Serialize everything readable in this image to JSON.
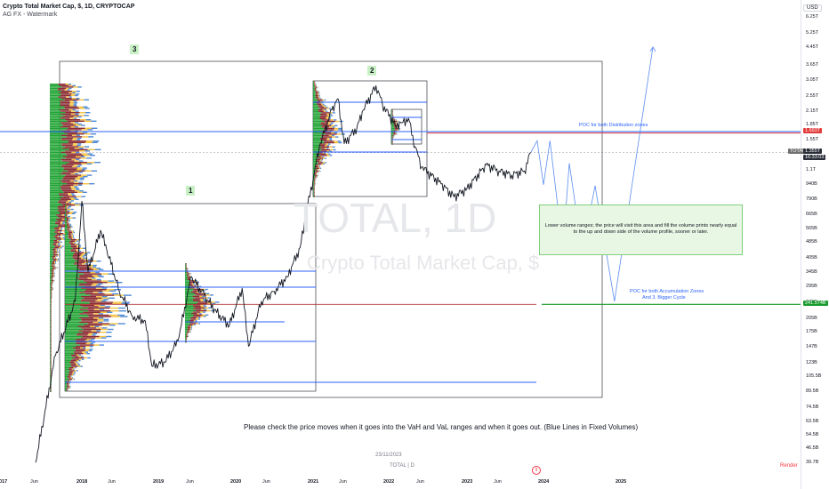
{
  "header": {
    "title": "Crypto Total Market Cap, $, 1D, CRYPTOCAP",
    "subtitle": "AG FX - Watermark"
  },
  "watermark": {
    "symbol": "TOTAL, 1D",
    "name": "Crypto Total Market Cap, $"
  },
  "axis": {
    "currency": "USD",
    "y_ticks": [
      "6.25T",
      "5.25T",
      "4.45T",
      "3.65T",
      "3.05T",
      "2.55T",
      "2.15T",
      "1.85T",
      "1.55T",
      "1.1T",
      "940B",
      "790B",
      "665B",
      "565B",
      "485B",
      "405B",
      "345B",
      "295B",
      "245B",
      "205B",
      "175B",
      "147B",
      "123B",
      "105.5B",
      "89.5B",
      "74.5B",
      "63.5B",
      "54.5B",
      "46.5B",
      "39.7B"
    ],
    "x_ticks": [
      "2017",
      "Jun",
      "2018",
      "Jun",
      "2019",
      "Jun",
      "2020",
      "Jun",
      "2021",
      "Jun",
      "2022",
      "Jun",
      "2023",
      "Jun",
      "2024",
      "2025"
    ]
  },
  "price_tags": {
    "total_label": "TOTAL",
    "total_value": "1.355T",
    "countdown": "16:33:03",
    "poc_distribution": "1.693T",
    "poc_accumulation": "241.574B"
  },
  "annotations": {
    "box1": "1",
    "box2": "2",
    "box3": "3",
    "poc_distribution_label": "POC for both Distribution zones",
    "poc_accumulation_label_1": "POC for both Accumulation Zones",
    "poc_accumulation_label_2": "And 3. Bigger Cycle",
    "note_box": "Lower volume ranges; the price will visit this area and fill the volume prints nearly equal to the up and down side of the volume profile, sooner or later.",
    "footer_note": "Please check the price moves when it goes into the VaH and VaL ranges and when it goes out. (Blue Lines in Fixed Volumes)"
  },
  "footer": {
    "date": "23/11/2023",
    "symbol": "TOTAL | D",
    "render": "Render",
    "event_icon": "9"
  },
  "chart_data": {
    "type": "line",
    "series": [
      {
        "name": "TOTAL",
        "x": [
          "2017-06",
          "2017-09",
          "2017-12",
          "2018-01",
          "2018-02",
          "2018-04",
          "2018-05",
          "2018-07",
          "2018-09",
          "2018-11",
          "2018-12",
          "2019-02",
          "2019-04",
          "2019-06",
          "2019-08",
          "2019-10",
          "2019-12",
          "2020-02",
          "2020-03",
          "2020-05",
          "2020-07",
          "2020-09",
          "2020-11",
          "2020-12",
          "2021-01",
          "2021-02",
          "2021-04",
          "2021-05",
          "2021-06",
          "2021-08",
          "2021-09",
          "2021-11",
          "2021-12",
          "2022-02",
          "2022-03",
          "2022-04",
          "2022-05",
          "2022-06",
          "2022-09",
          "2022-11",
          "2023-01",
          "2023-04",
          "2023-06",
          "2023-08",
          "2023-10",
          "2023-11"
        ],
        "values": [
          40,
          135,
          250,
          780,
          350,
          560,
          450,
          280,
          210,
          200,
          120,
          125,
          160,
          330,
          270,
          220,
          190,
          290,
          150,
          250,
          280,
          330,
          460,
          700,
          1000,
          1450,
          2200,
          2500,
          1500,
          1800,
          2200,
          2900,
          2350,
          1850,
          1900,
          2000,
          1450,
          1150,
          950,
          820,
          900,
          1180,
          1100,
          1050,
          1100,
          1355
        ]
      },
      {
        "name": "Projection",
        "x": [
          "2023-11",
          "2023-12",
          "2024-01",
          "2024-02",
          "2024-04",
          "2024-05",
          "2024-07",
          "2024-09",
          "2024-12",
          "2025-03"
        ],
        "values": [
          1355,
          1550,
          940,
          1550,
          450,
          1200,
          440,
          930,
          250,
          4500
        ]
      }
    ],
    "horizontal_levels": {
      "poc_distribution": 1693,
      "poc_accumulation": 241.574
    },
    "yscale": "log",
    "ylim": [
      37,
      6800
    ],
    "units": "$B"
  }
}
